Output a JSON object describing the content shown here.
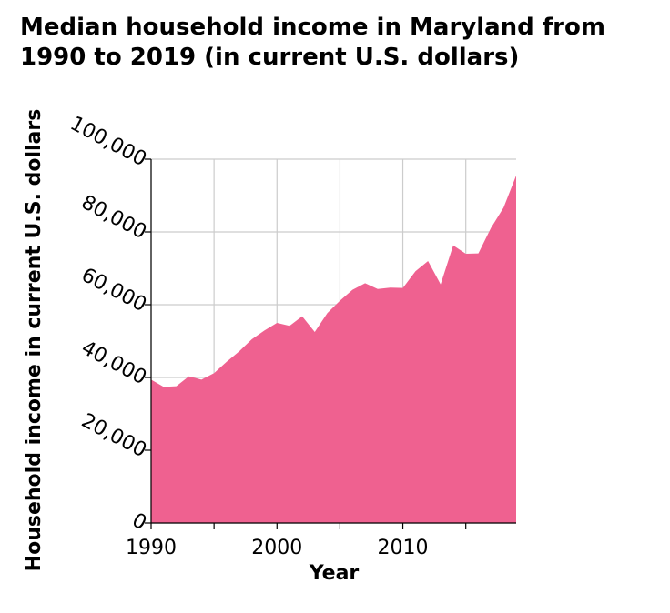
{
  "chart_data": {
    "type": "area",
    "title": "Median household income in Maryland from 1990 to 2019 (in current U.S. dollars)",
    "xlabel": "Year",
    "ylabel": "Household income in current U.S. dollars",
    "x": [
      1990,
      1991,
      1992,
      1993,
      1994,
      1995,
      1996,
      1997,
      1998,
      1999,
      2000,
      2001,
      2002,
      2003,
      2004,
      2005,
      2006,
      2007,
      2008,
      2009,
      2010,
      2011,
      2012,
      2013,
      2014,
      2015,
      2016,
      2017,
      2018,
      2019
    ],
    "values": [
      39400,
      37400,
      37600,
      40300,
      39400,
      41200,
      44300,
      47200,
      50500,
      52900,
      55000,
      54200,
      56800,
      52500,
      57700,
      61100,
      64100,
      65900,
      64300,
      64700,
      64600,
      69200,
      72000,
      65600,
      76300,
      74000,
      74100,
      81100,
      86700,
      95500
    ],
    "xlim": [
      1990,
      2019
    ],
    "ylim": [
      0,
      100000
    ],
    "xticks": [
      1990,
      2000,
      2010
    ],
    "xtick_labels": [
      "1990",
      "2000",
      "2010"
    ],
    "yticks": [
      0,
      20000,
      40000,
      60000,
      80000,
      100000
    ],
    "ytick_labels": [
      "0",
      "20,000",
      "40,000",
      "60,000",
      "80,000",
      "100,000"
    ],
    "grid": true,
    "fill_color": "#ef6190",
    "grid_color": "#cccccc"
  }
}
